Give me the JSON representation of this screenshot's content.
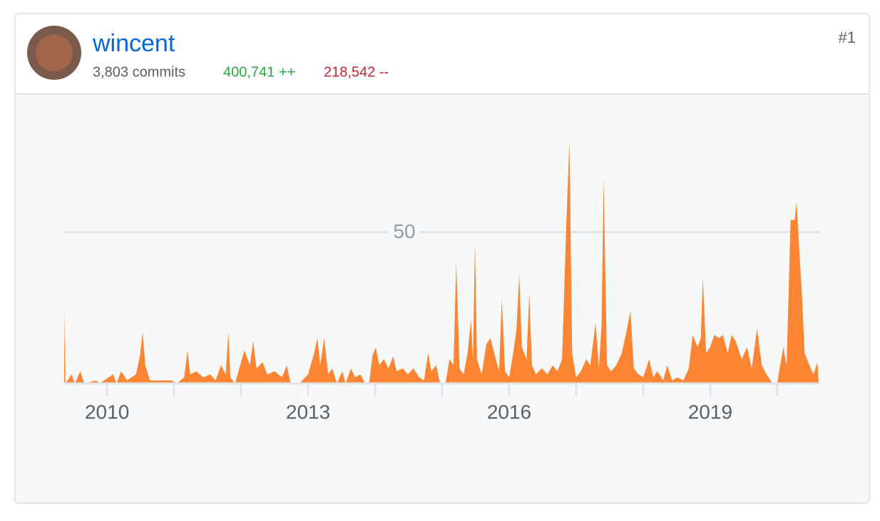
{
  "header": {
    "name": "wincent",
    "commits": "3,803 commits",
    "additions": "400,741 ++",
    "deletions": "218,542 --",
    "rank": "#1"
  },
  "chart_data": {
    "type": "area",
    "color": "#fb8532",
    "x": [
      2009.36,
      2009.38,
      2009.47,
      2009.52,
      2009.6,
      2009.66,
      2009.84,
      2009.89,
      2010.09,
      2010.14,
      2010.21,
      2010.3,
      2010.43,
      2010.49,
      2010.53,
      2010.57,
      2010.64,
      2010.77,
      2010.96,
      2011.04,
      2011.15,
      2011.2,
      2011.24,
      2011.33,
      2011.44,
      2011.54,
      2011.62,
      2011.7,
      2011.77,
      2011.81,
      2011.84,
      2011.91,
      2012.05,
      2012.13,
      2012.18,
      2012.23,
      2012.32,
      2012.39,
      2012.5,
      2012.61,
      2012.68,
      2012.74,
      2012.87,
      2013.0,
      2013.09,
      2013.14,
      2013.18,
      2013.24,
      2013.3,
      2013.36,
      2013.43,
      2013.51,
      2013.56,
      2013.64,
      2013.7,
      2013.78,
      2013.85,
      2013.91,
      2013.96,
      2014.01,
      2014.06,
      2014.13,
      2014.2,
      2014.27,
      2014.32,
      2014.41,
      2014.49,
      2014.57,
      2014.66,
      2014.73,
      2014.79,
      2014.84,
      2014.91,
      2014.97,
      2015.05,
      2015.11,
      2015.17,
      2015.21,
      2015.26,
      2015.32,
      2015.38,
      2015.43,
      2015.46,
      2015.49,
      2015.52,
      2015.59,
      2015.66,
      2015.72,
      2015.79,
      2015.85,
      2015.89,
      2015.94,
      2016.0,
      2016.06,
      2016.11,
      2016.15,
      2016.19,
      2016.26,
      2016.3,
      2016.34,
      2016.4,
      2016.49,
      2016.57,
      2016.65,
      2016.72,
      2016.79,
      2016.85,
      2016.9,
      2016.94,
      2017.0,
      2017.07,
      2017.15,
      2017.21,
      2017.29,
      2017.34,
      2017.38,
      2017.41,
      2017.46,
      2017.52,
      2017.6,
      2017.68,
      2017.74,
      2017.81,
      2017.86,
      2017.93,
      2018.0,
      2018.09,
      2018.15,
      2018.21,
      2018.3,
      2018.36,
      2018.43,
      2018.51,
      2018.6,
      2018.68,
      2018.74,
      2018.81,
      2018.86,
      2018.89,
      2018.94,
      2019.0,
      2019.06,
      2019.13,
      2019.19,
      2019.26,
      2019.32,
      2019.38,
      2019.47,
      2019.55,
      2019.62,
      2019.7,
      2019.77,
      2019.84,
      2019.93,
      2020.0,
      2020.09,
      2020.14,
      2020.2,
      2020.26,
      2020.29,
      2020.34,
      2020.37,
      2020.41,
      2020.48,
      2020.54,
      2020.6,
      2020.62
    ],
    "values": [
      24,
      0,
      3,
      0,
      4,
      0,
      1,
      0,
      3,
      0,
      4,
      1,
      3,
      9,
      17,
      6,
      1,
      1,
      1,
      0,
      2,
      11,
      3,
      4,
      2,
      3,
      1,
      6,
      3,
      17,
      2,
      0,
      11,
      6,
      14,
      5,
      7,
      3,
      4,
      2,
      6,
      0,
      0,
      3,
      10,
      15,
      6,
      15,
      3,
      5,
      0,
      4,
      0,
      5,
      2,
      3,
      0,
      0,
      9,
      12,
      6,
      8,
      5,
      9,
      4,
      5,
      3,
      5,
      2,
      1,
      10,
      4,
      6,
      0,
      0,
      8,
      6,
      40,
      5,
      3,
      10,
      21,
      8,
      47,
      8,
      3,
      13,
      15,
      9,
      4,
      28,
      4,
      2,
      10,
      18,
      36,
      12,
      8,
      30,
      6,
      3,
      5,
      3,
      6,
      4,
      8,
      51,
      80,
      10,
      2,
      4,
      8,
      6,
      20,
      5,
      20,
      68,
      6,
      4,
      6,
      10,
      16,
      24,
      5,
      3,
      2,
      8,
      2,
      4,
      1,
      6,
      1,
      2,
      1,
      5,
      16,
      12,
      15,
      35,
      10,
      12,
      16,
      15,
      16,
      10,
      16,
      14,
      8,
      12,
      5,
      18,
      6,
      3,
      0,
      0,
      12,
      6,
      54,
      54,
      60,
      40,
      29,
      10,
      6,
      3,
      7,
      0
    ],
    "xlim": [
      2009.36,
      2020.64
    ],
    "xticks": [
      2010,
      2013,
      2016,
      2019
    ],
    "xminor": [
      2010,
      2011,
      2012,
      2013,
      2014,
      2015,
      2016,
      2017,
      2018,
      2019,
      2020
    ],
    "ylim": [
      0,
      85
    ],
    "yticks": [
      50
    ],
    "grid": true
  }
}
